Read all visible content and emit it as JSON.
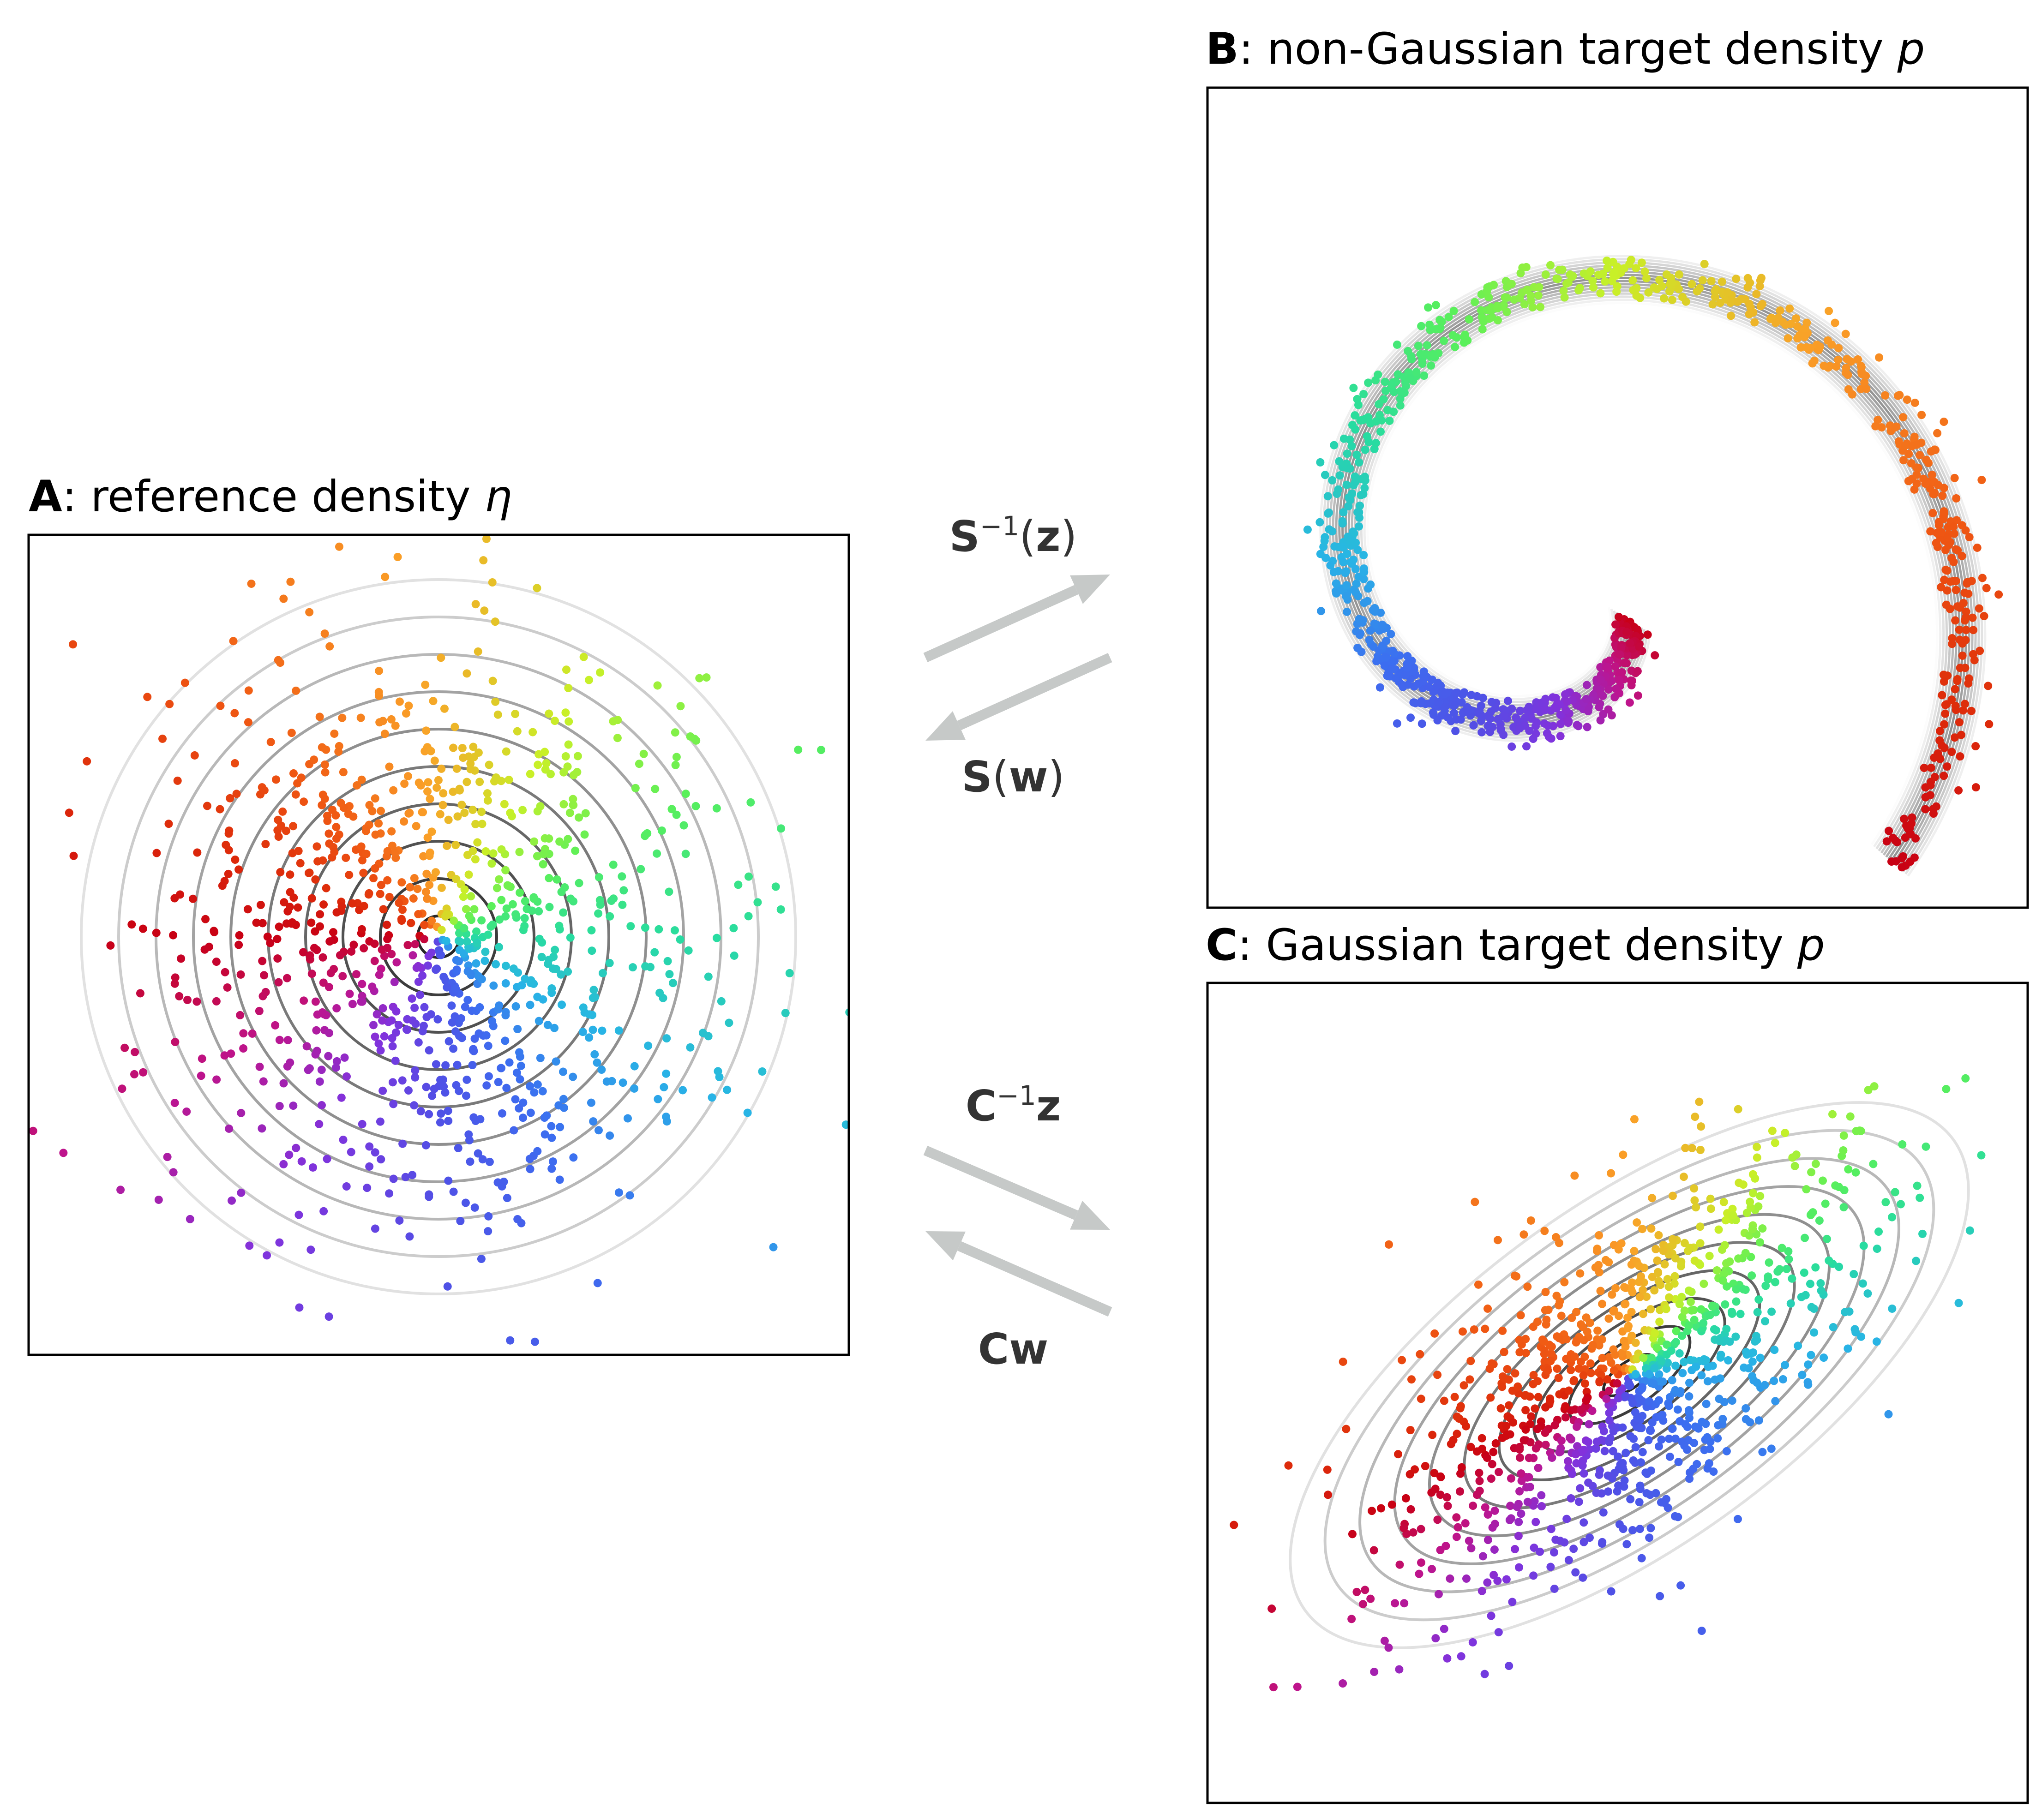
{
  "panels": {
    "A": {
      "letter": "A",
      "rest": ": reference density ",
      "symbol": "η"
    },
    "B": {
      "letter": "B",
      "rest": ": non-Gaussian target density ",
      "symbol": "p"
    },
    "C": {
      "letter": "C",
      "rest": ": Gaussian target density ",
      "symbol": "p"
    }
  },
  "maps": {
    "spiral_inverse": {
      "op": "S",
      "sup": "−1",
      "open": "(",
      "arg": "z",
      "close": ")"
    },
    "spiral_forward": {
      "op": "S",
      "open": "(",
      "arg": "w",
      "close": ")"
    },
    "gauss_inverse": {
      "op": "C",
      "sup": "−1",
      "arg": "z"
    },
    "gauss_forward": {
      "op": "Cw"
    }
  },
  "colors": {
    "arrow": "#c6c9c8",
    "contour_dark": "#222222",
    "contour_light": "#eeeeee",
    "frame": "#000000",
    "sample_colormap": "rainbow (purple-blue-cyan-green-yellow-orange-red by polar angle)"
  }
}
